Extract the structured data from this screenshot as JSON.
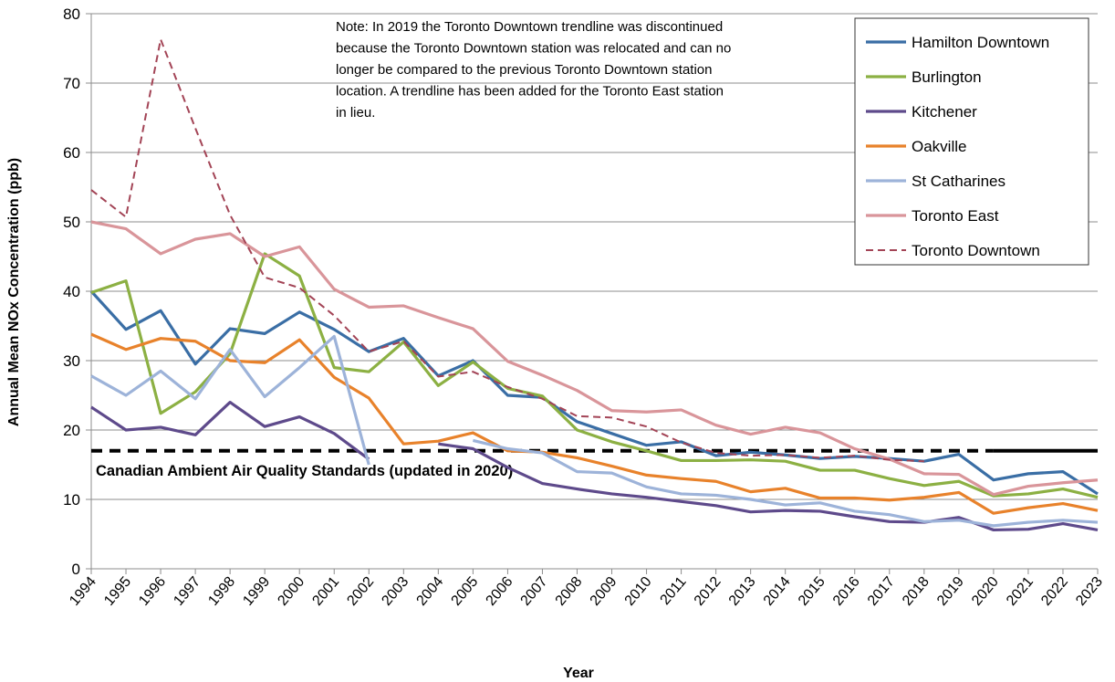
{
  "chart_data": {
    "type": "line",
    "ylabel": "Annual Mean NOx Concentration (ppb)",
    "xlabel": "Year",
    "annotation": [
      "Note: In 2019 the Toronto Downtown trendline was discontinued",
      "because the Toronto Downtown station was relocated and can no",
      "longer be compared to the previous Toronto Downtown station",
      "location. A trendline has been added for the Toronto East station",
      "in lieu."
    ],
    "categories": [
      "1994",
      "1995",
      "1996",
      "1997",
      "1998",
      "1999",
      "2000",
      "2001",
      "2002",
      "2003",
      "2004",
      "2005",
      "2006",
      "2007",
      "2008",
      "2009",
      "2010",
      "2011",
      "2012",
      "2013",
      "2014",
      "2015",
      "2016",
      "2017",
      "2018",
      "2019",
      "2020",
      "2021",
      "2022",
      "2023"
    ],
    "ylim": [
      0,
      80
    ],
    "yticks": [
      0,
      10,
      20,
      30,
      40,
      50,
      60,
      70,
      80
    ],
    "grid": true,
    "legend": "upper right",
    "reference_line": {
      "value": 17,
      "label": "Canadian Ambient Air Quality Standards (updated in 2020)",
      "color": "#000000",
      "style": "dashed",
      "solid_from": "2020"
    },
    "series": [
      {
        "name": "Hamilton Downtown",
        "color": "#3a6ea5",
        "style": "solid",
        "values": [
          40,
          34.5,
          37.2,
          29.5,
          34.6,
          33.9,
          37,
          34.5,
          31.3,
          33.2,
          27.8,
          30,
          25,
          24.7,
          21.2,
          19.5,
          17.8,
          18.3,
          16.3,
          16.8,
          16.4,
          15.9,
          16.2,
          15.9,
          15.5,
          16.5,
          12.8,
          13.7,
          14,
          10.8
        ]
      },
      {
        "name": "Burlington",
        "color": "#8cb043",
        "style": "solid",
        "values": [
          39.8,
          41.5,
          22.4,
          25.5,
          31,
          45.4,
          42.2,
          29,
          28.4,
          32.7,
          26.4,
          29.8,
          26,
          24.9,
          20,
          18.3,
          17,
          15.6,
          15.6,
          15.7,
          15.5,
          14.2,
          14.2,
          13,
          12,
          12.6,
          10.5,
          10.8,
          11.5,
          10.3
        ]
      },
      {
        "name": "Kitchener",
        "color": "#5e4a8b",
        "style": "solid",
        "values": [
          23.3,
          20,
          20.4,
          19.3,
          24,
          20.5,
          21.9,
          19.5,
          15.8,
          null,
          18,
          17.3,
          14.6,
          12.3,
          11.5,
          10.8,
          10.3,
          9.7,
          9.1,
          8.2,
          8.4,
          8.3,
          7.5,
          6.8,
          6.7,
          7.4,
          5.6,
          5.7,
          6.5,
          5.6
        ]
      },
      {
        "name": "Oakville",
        "color": "#e8822b",
        "style": "solid",
        "values": [
          33.8,
          31.6,
          33.2,
          32.8,
          30,
          29.7,
          33,
          27.6,
          24.6,
          18,
          18.4,
          19.6,
          17,
          16.8,
          16,
          14.8,
          13.5,
          13,
          12.6,
          11.1,
          11.6,
          10.2,
          10.2,
          9.9,
          10.3,
          11,
          8,
          8.8,
          9.4,
          8.4
        ]
      },
      {
        "name": "St Catharines",
        "color": "#9db3d9",
        "style": "solid",
        "values": [
          27.8,
          25,
          28.5,
          24.5,
          31.6,
          24.8,
          29,
          33.5,
          15,
          null,
          null,
          18.5,
          17.3,
          16.7,
          14,
          13.8,
          11.8,
          10.8,
          10.6,
          10,
          9.2,
          9.5,
          8.3,
          7.8,
          6.8,
          7,
          6.2,
          6.7,
          7,
          6.7
        ]
      },
      {
        "name": "Toronto East",
        "color": "#d9959a",
        "style": "solid",
        "values": [
          50,
          49,
          45.4,
          47.5,
          48.3,
          45,
          46.4,
          40.3,
          37.7,
          37.9,
          36.2,
          34.6,
          29.9,
          27.9,
          25.7,
          22.8,
          22.6,
          22.9,
          20.7,
          19.4,
          20.4,
          19.6,
          17.3,
          15.8,
          13.7,
          13.6,
          10.7,
          11.9,
          12.4,
          12.8
        ]
      },
      {
        "name": "Toronto Downtown",
        "color": "#a34456",
        "style": "dashed",
        "values": [
          54.6,
          50.7,
          76.3,
          63.5,
          51,
          42,
          40.5,
          36.5,
          31.3,
          32.8,
          27.7,
          28.4,
          26.2,
          24.5,
          22,
          21.8,
          20.5,
          18.2,
          16.7,
          16.3,
          16.4,
          16,
          16.3,
          15.7,
          15.5,
          null,
          null,
          null,
          null,
          null
        ]
      }
    ]
  }
}
